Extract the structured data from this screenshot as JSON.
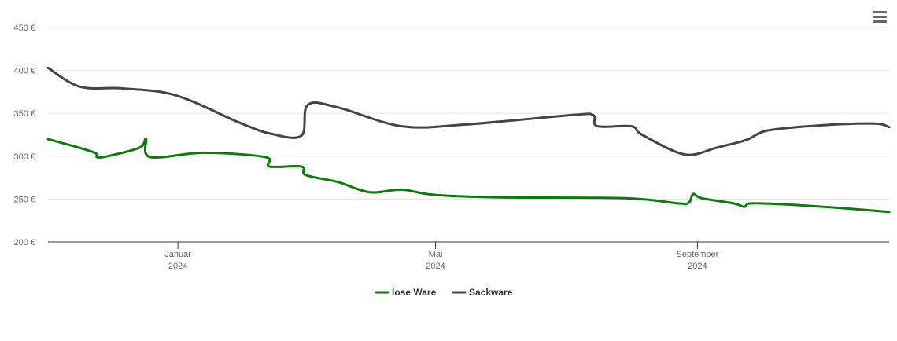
{
  "menu_icon": "hamburger-menu-icon",
  "colors": {
    "lose_ware": "#0a7c0a",
    "sackware": "#434348",
    "grid": "#e6e6e6",
    "axis": "#333333",
    "menu": "#666666"
  },
  "chart_data": {
    "type": "line",
    "currency_suffix": " €",
    "y_ticks": [
      200,
      250,
      300,
      350,
      400,
      450
    ],
    "y_tick_labels": [
      "200 €",
      "250 €",
      "300 €",
      "350 €",
      "400 €",
      "450 €"
    ],
    "ylim": [
      200,
      450
    ],
    "xlim": [
      "2023-11-01",
      "2024-11-30"
    ],
    "x_ticks": [
      {
        "date": "2024-01-01",
        "month": "Januar",
        "year": "2024"
      },
      {
        "date": "2024-05-01",
        "month": "Mai",
        "year": "2024"
      },
      {
        "date": "2024-09-01",
        "month": "September",
        "year": "2024"
      }
    ],
    "grid": true,
    "legend": "bottom-center",
    "series": [
      {
        "name": "lose Ware",
        "color": "#0a7c0a",
        "points": [
          [
            "2023-11-01",
            320
          ],
          [
            "2023-11-22",
            305
          ],
          [
            "2023-11-24",
            299
          ],
          [
            "2023-11-29",
            300
          ],
          [
            "2023-12-14",
            310
          ],
          [
            "2023-12-17",
            320
          ],
          [
            "2023-12-19",
            299
          ],
          [
            "2024-01-13",
            304
          ],
          [
            "2024-02-11",
            299
          ],
          [
            "2024-02-13",
            288
          ],
          [
            "2024-02-28",
            288
          ],
          [
            "2024-03-01",
            278
          ],
          [
            "2024-03-16",
            270
          ],
          [
            "2024-03-31",
            258
          ],
          [
            "2024-04-15",
            261
          ],
          [
            "2024-04-30",
            255
          ],
          [
            "2024-05-30",
            252
          ],
          [
            "2024-07-29",
            251
          ],
          [
            "2024-08-23",
            245
          ],
          [
            "2024-08-28",
            246
          ],
          [
            "2024-08-30",
            256
          ],
          [
            "2024-09-03",
            251
          ],
          [
            "2024-09-18",
            245
          ],
          [
            "2024-09-23",
            241
          ],
          [
            "2024-09-26",
            245
          ],
          [
            "2024-10-11",
            244
          ],
          [
            "2024-11-05",
            240
          ],
          [
            "2024-11-30",
            235
          ]
        ]
      },
      {
        "name": "Sackware",
        "color": "#434348",
        "points": [
          [
            "2023-11-01",
            403
          ],
          [
            "2023-11-16",
            381
          ],
          [
            "2023-12-06",
            379
          ],
          [
            "2023-12-31",
            371
          ],
          [
            "2024-01-30",
            339
          ],
          [
            "2024-02-14",
            326
          ],
          [
            "2024-02-28",
            324
          ],
          [
            "2024-03-02",
            360
          ],
          [
            "2024-03-16",
            357
          ],
          [
            "2024-04-15",
            335
          ],
          [
            "2024-05-15",
            337
          ],
          [
            "2024-07-04",
            348
          ],
          [
            "2024-07-14",
            348
          ],
          [
            "2024-07-16",
            335
          ],
          [
            "2024-08-01",
            335
          ],
          [
            "2024-08-06",
            325
          ],
          [
            "2024-08-26",
            302
          ],
          [
            "2024-09-10",
            310
          ],
          [
            "2024-09-24",
            319
          ],
          [
            "2024-10-04",
            330
          ],
          [
            "2024-10-29",
            336
          ],
          [
            "2024-11-23",
            338
          ],
          [
            "2024-11-30",
            334
          ]
        ]
      }
    ]
  }
}
